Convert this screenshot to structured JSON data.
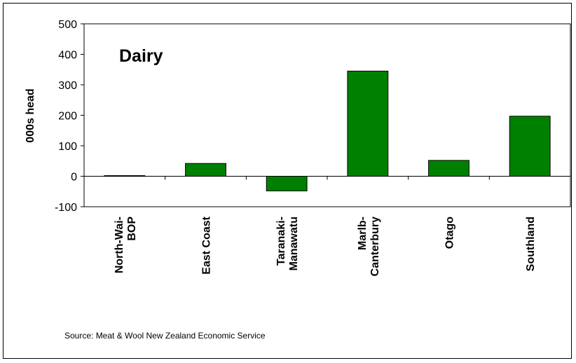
{
  "chart_data": {
    "type": "bar",
    "title": "Dairy",
    "xlabel": "",
    "ylabel": "000s head",
    "ylim": [
      -100,
      500
    ],
    "yticks": [
      -100,
      0,
      100,
      200,
      300,
      400,
      500
    ],
    "grid": false,
    "categories": [
      [
        "North-Wai-",
        "BOP"
      ],
      [
        "East Coast"
      ],
      [
        "Taranaki-",
        "Manawatu"
      ],
      [
        "Marlb-",
        "Canterbury"
      ],
      [
        "Otago"
      ],
      [
        "Southland"
      ]
    ],
    "values": [
      2,
      42,
      -48,
      345,
      52,
      197
    ],
    "bar_color": "#008000",
    "source_note": "Source: Meat & Wool New Zealand Economic Service"
  }
}
